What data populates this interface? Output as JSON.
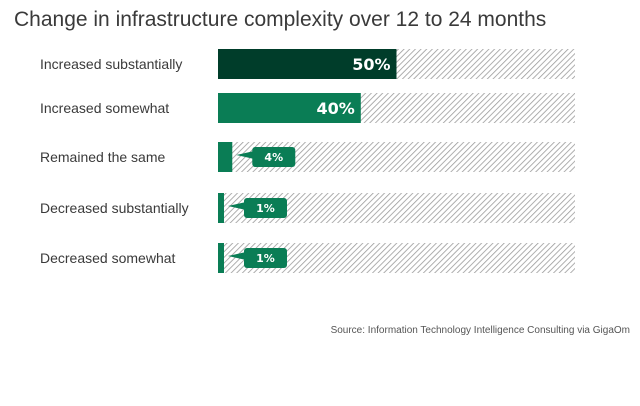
{
  "chart_data": {
    "type": "bar",
    "orientation": "horizontal",
    "title": "Change in infrastructure complexity over 12 to 24 months",
    "categories": [
      "Increased substantially",
      "Increased somewhat",
      "Remained the same",
      "Decreased substantially",
      "Decreased somewhat"
    ],
    "values": [
      50,
      40,
      4,
      1,
      1
    ],
    "value_labels": [
      "50%",
      "40%",
      "4%",
      "1%",
      "1%"
    ],
    "xlim": [
      0,
      100
    ],
    "colors": [
      "#003d2a",
      "#0a7d55",
      "#0a7d55",
      "#0a7d55",
      "#0a7d55"
    ],
    "source": "Source: Information Technology Intelligence Consulting via GigaOm"
  }
}
